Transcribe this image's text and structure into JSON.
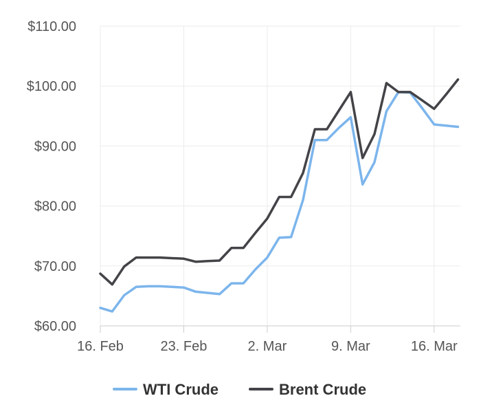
{
  "chart_data": {
    "type": "line",
    "ylim": [
      60,
      110
    ],
    "y_ticks": [
      "$60.00",
      "$70.00",
      "$80.00",
      "$90.00",
      "$100.00",
      "$110.00"
    ],
    "y_tick_values": [
      60,
      70,
      80,
      90,
      100,
      110
    ],
    "x_ticks": [
      "16. Feb",
      "23. Feb",
      "2. Mar",
      "9. Mar",
      "16. Mar"
    ],
    "x_tick_dates": [
      "2022-02-16",
      "2022-02-23",
      "2022-03-02",
      "2022-03-09",
      "2022-03-16"
    ],
    "xlim": [
      "2022-02-16",
      "2022-03-18"
    ],
    "grid": true,
    "legend_position": "bottom",
    "series": [
      {
        "name": "WTI Crude",
        "color": "#7cb5ec",
        "points": [
          [
            "2022-02-16",
            63.0
          ],
          [
            "2022-02-17",
            62.4
          ],
          [
            "2022-02-18",
            65.1
          ],
          [
            "2022-02-19",
            66.5
          ],
          [
            "2022-02-20",
            66.6
          ],
          [
            "2022-02-21",
            66.6
          ],
          [
            "2022-02-22",
            66.5
          ],
          [
            "2022-02-23",
            66.4
          ],
          [
            "2022-02-24",
            65.7
          ],
          [
            "2022-02-25",
            65.5
          ],
          [
            "2022-02-26",
            65.3
          ],
          [
            "2022-02-27",
            67.1
          ],
          [
            "2022-02-28",
            67.1
          ],
          [
            "2022-03-01",
            69.4
          ],
          [
            "2022-03-02",
            71.4
          ],
          [
            "2022-03-03",
            74.7
          ],
          [
            "2022-03-04",
            74.8
          ],
          [
            "2022-03-05",
            81.0
          ],
          [
            "2022-03-06",
            91.0
          ],
          [
            "2022-03-07",
            91.0
          ],
          [
            "2022-03-08",
            93.0
          ],
          [
            "2022-03-09",
            94.8
          ],
          [
            "2022-03-10",
            83.6
          ],
          [
            "2022-03-11",
            87.3
          ],
          [
            "2022-03-12",
            95.8
          ],
          [
            "2022-03-13",
            99.0
          ],
          [
            "2022-03-14",
            98.9
          ],
          [
            "2022-03-15",
            96.3
          ],
          [
            "2022-03-16",
            93.6
          ],
          [
            "2022-03-17",
            93.4
          ],
          [
            "2022-03-18",
            93.2
          ]
        ]
      },
      {
        "name": "Brent Crude",
        "color": "#434348",
        "points": [
          [
            "2022-02-16",
            68.7
          ],
          [
            "2022-02-17",
            66.9
          ],
          [
            "2022-02-18",
            69.9
          ],
          [
            "2022-02-19",
            71.4
          ],
          [
            "2022-02-20",
            71.4
          ],
          [
            "2022-02-21",
            71.4
          ],
          [
            "2022-02-22",
            71.3
          ],
          [
            "2022-02-23",
            71.2
          ],
          [
            "2022-02-24",
            70.7
          ],
          [
            "2022-02-25",
            70.8
          ],
          [
            "2022-02-26",
            70.9
          ],
          [
            "2022-02-27",
            73.0
          ],
          [
            "2022-02-28",
            73.0
          ],
          [
            "2022-03-01",
            75.5
          ],
          [
            "2022-03-02",
            77.9
          ],
          [
            "2022-03-03",
            81.5
          ],
          [
            "2022-03-04",
            81.5
          ],
          [
            "2022-03-05",
            85.5
          ],
          [
            "2022-03-06",
            92.8
          ],
          [
            "2022-03-07",
            92.8
          ],
          [
            "2022-03-08",
            95.9
          ],
          [
            "2022-03-09",
            99.0
          ],
          [
            "2022-03-10",
            88.0
          ],
          [
            "2022-03-11",
            92.0
          ],
          [
            "2022-03-12",
            100.5
          ],
          [
            "2022-03-13",
            99.0
          ],
          [
            "2022-03-14",
            99.0
          ],
          [
            "2022-03-15",
            97.6
          ],
          [
            "2022-03-16",
            96.2
          ],
          [
            "2022-03-17",
            98.6
          ],
          [
            "2022-03-18",
            101.1
          ]
        ]
      }
    ]
  }
}
